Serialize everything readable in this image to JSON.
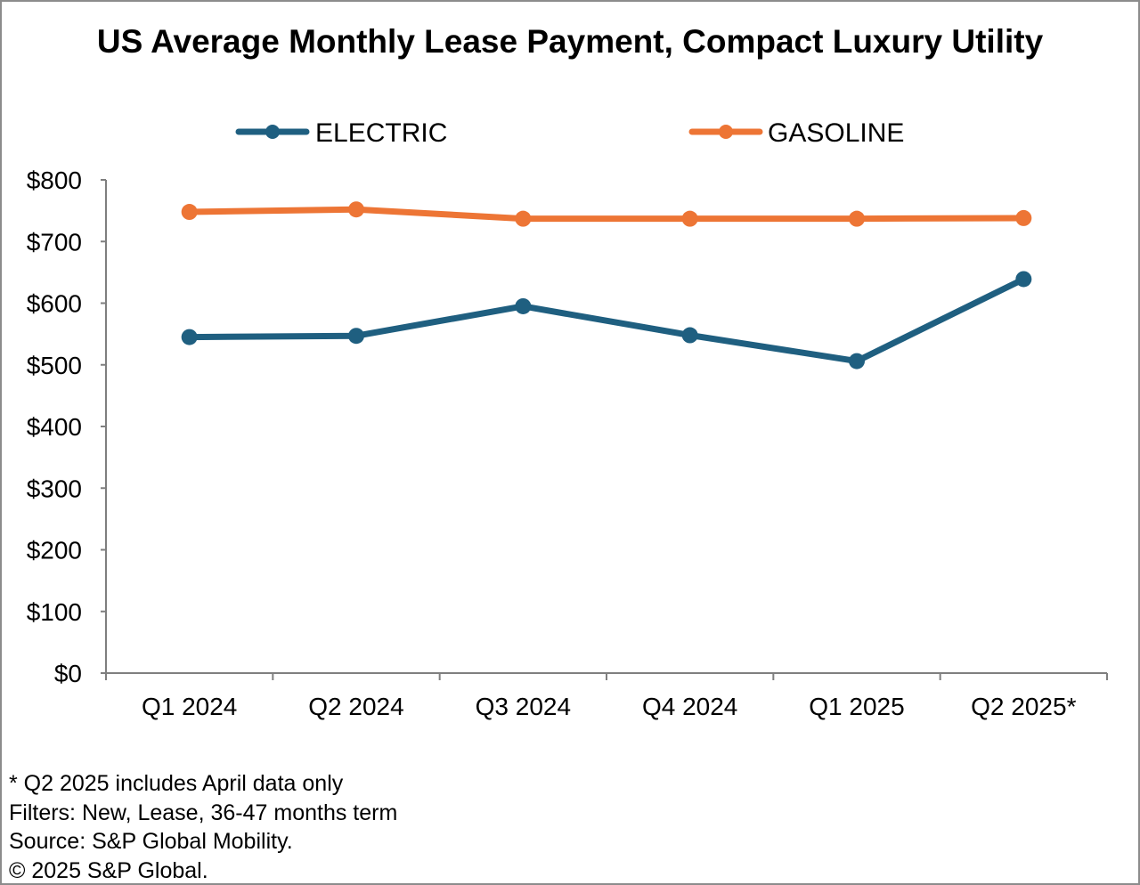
{
  "chart_data": {
    "type": "line",
    "title": "US Average Monthly Lease Payment, Compact Luxury Utility",
    "categories": [
      "Q1 2024",
      "Q2 2024",
      "Q3 2024",
      "Q4 2024",
      "Q1 2025",
      "Q2 2025*"
    ],
    "series": [
      {
        "name": "ELECTRIC",
        "color": "#1f5f80",
        "values": [
          545,
          547,
          595,
          548,
          506,
          639
        ]
      },
      {
        "name": "GASOLINE",
        "color": "#ed7535",
        "values": [
          748,
          752,
          737,
          737,
          737,
          738
        ]
      }
    ],
    "y_ticks": [
      "$0",
      "$100",
      "$200",
      "$300",
      "$400",
      "$500",
      "$600",
      "$700",
      "$800"
    ],
    "ylim": [
      0,
      800
    ],
    "xlabel": "",
    "ylabel": "",
    "grid": false,
    "legend_position": "top"
  },
  "footnotes": [
    "* Q2 2025 includes April data only",
    "Filters: New, Lease, 36-47 months term",
    "Source: S&P Global Mobility.",
    "© 2025 S&P Global."
  ]
}
